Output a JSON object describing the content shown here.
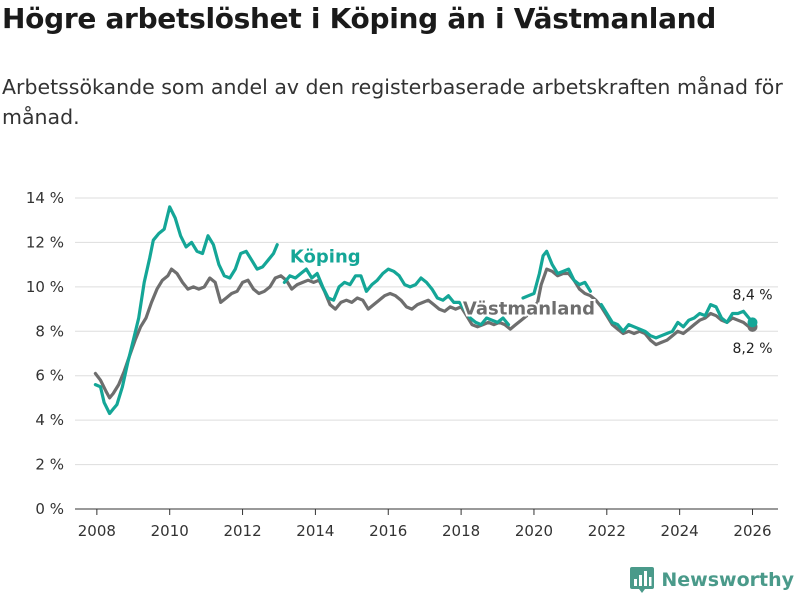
{
  "title": "Högre arbetslöshet i Köping än i Västmanland",
  "subtitle": "Arbetssökande som andel av den registerbaserade arbetskraften månad för månad.",
  "brand": {
    "name": "Newsworthy",
    "icon": "bar-chart-logo-icon"
  },
  "colors": {
    "koping": "#14a697",
    "vastmanland": "#6e6e6e",
    "grid": "#dddddd",
    "brand": "#4a9a8a"
  },
  "chart_data": {
    "type": "line",
    "title": "",
    "xlabel": "",
    "ylabel": "",
    "xlim": [
      2007.4,
      2026.7
    ],
    "ylim": [
      0,
      14
    ],
    "x_ticks": [
      2008,
      2010,
      2012,
      2014,
      2016,
      2018,
      2020,
      2022,
      2024,
      2026
    ],
    "x_tick_labels": [
      "2008",
      "2010",
      "2012",
      "2014",
      "2016",
      "2018",
      "2020",
      "2022",
      "2024",
      "2026"
    ],
    "y_ticks": [
      0,
      2,
      4,
      6,
      8,
      10,
      12,
      14
    ],
    "y_tick_labels": [
      "0 %",
      "2 %",
      "4 %",
      "6 %",
      "8 %",
      "10 %",
      "12 %",
      "14 %"
    ],
    "series": [
      {
        "name": "Köping",
        "label_text": "Köping",
        "end_label": "8,4 %",
        "color": "#14a697",
        "points": [
          [
            2007.96,
            5.6
          ],
          [
            2008.1,
            5.5
          ],
          [
            2008.2,
            4.8
          ],
          [
            2008.35,
            4.3
          ],
          [
            2008.45,
            4.5
          ],
          [
            2008.55,
            4.7
          ],
          [
            2008.7,
            5.5
          ],
          [
            2008.85,
            6.6
          ],
          [
            2009.0,
            7.6
          ],
          [
            2009.15,
            8.6
          ],
          [
            2009.3,
            10.2
          ],
          [
            2009.45,
            11.3
          ],
          [
            2009.55,
            12.1
          ],
          [
            2009.7,
            12.4
          ],
          [
            2009.85,
            12.6
          ],
          [
            2010.0,
            13.6
          ],
          [
            2010.15,
            13.1
          ],
          [
            2010.3,
            12.3
          ],
          [
            2010.45,
            11.8
          ],
          [
            2010.6,
            12.0
          ],
          [
            2010.75,
            11.6
          ],
          [
            2010.9,
            11.5
          ],
          [
            2011.05,
            12.3
          ],
          [
            2011.2,
            11.9
          ],
          [
            2011.35,
            11.0
          ],
          [
            2011.5,
            10.5
          ],
          [
            2011.65,
            10.4
          ],
          [
            2011.8,
            10.8
          ],
          [
            2011.95,
            11.5
          ],
          [
            2012.1,
            11.6
          ],
          [
            2012.25,
            11.2
          ],
          [
            2012.4,
            10.8
          ],
          [
            2012.55,
            10.9
          ],
          [
            2012.7,
            11.2
          ],
          [
            2012.85,
            11.5
          ],
          [
            2012.95,
            11.9
          ],
          [
            null,
            null
          ],
          [
            2013.15,
            10.2
          ],
          [
            2013.3,
            10.5
          ],
          [
            2013.45,
            10.4
          ],
          [
            2013.6,
            10.6
          ],
          [
            2013.75,
            10.8
          ],
          [
            2013.9,
            10.4
          ],
          [
            2014.05,
            10.6
          ],
          [
            2014.2,
            10.0
          ],
          [
            2014.35,
            9.5
          ],
          [
            2014.5,
            9.4
          ],
          [
            2014.65,
            10.0
          ],
          [
            2014.8,
            10.2
          ],
          [
            2014.95,
            10.1
          ],
          [
            2015.1,
            10.5
          ],
          [
            2015.25,
            10.5
          ],
          [
            2015.4,
            9.8
          ],
          [
            2015.55,
            10.1
          ],
          [
            2015.7,
            10.3
          ],
          [
            2015.85,
            10.6
          ],
          [
            2016.0,
            10.8
          ],
          [
            2016.15,
            10.7
          ],
          [
            2016.3,
            10.5
          ],
          [
            2016.45,
            10.1
          ],
          [
            2016.6,
            10.0
          ],
          [
            2016.75,
            10.1
          ],
          [
            2016.9,
            10.4
          ],
          [
            2017.05,
            10.2
          ],
          [
            2017.2,
            9.9
          ],
          [
            2017.35,
            9.5
          ],
          [
            2017.5,
            9.4
          ],
          [
            2017.65,
            9.6
          ],
          [
            2017.8,
            9.3
          ],
          [
            2017.95,
            9.3
          ],
          [
            2018.1,
            9.0
          ],
          [
            2018.25,
            8.6
          ],
          [
            2018.4,
            8.4
          ],
          [
            2018.55,
            8.3
          ],
          [
            2018.7,
            8.6
          ],
          [
            2018.85,
            8.5
          ],
          [
            2019.0,
            8.4
          ],
          [
            2019.15,
            8.6
          ],
          [
            2019.3,
            8.3
          ],
          [
            null,
            null
          ],
          [
            2019.7,
            9.5
          ],
          [
            2019.85,
            9.6
          ],
          [
            2020.0,
            9.7
          ],
          [
            2020.15,
            10.6
          ],
          [
            2020.25,
            11.4
          ],
          [
            2020.35,
            11.6
          ],
          [
            2020.5,
            11.0
          ],
          [
            2020.65,
            10.6
          ],
          [
            2020.8,
            10.7
          ],
          [
            2020.95,
            10.8
          ],
          [
            2021.1,
            10.3
          ],
          [
            2021.25,
            10.1
          ],
          [
            2021.4,
            10.2
          ],
          [
            2021.55,
            9.8
          ],
          [
            null,
            null
          ],
          [
            2021.85,
            9.2
          ],
          [
            2022.0,
            8.8
          ],
          [
            2022.15,
            8.4
          ],
          [
            2022.3,
            8.3
          ],
          [
            2022.45,
            8.0
          ],
          [
            2022.6,
            8.3
          ],
          [
            2022.75,
            8.2
          ],
          [
            2022.9,
            8.1
          ],
          [
            2023.05,
            8.0
          ],
          [
            2023.2,
            7.8
          ],
          [
            2023.35,
            7.7
          ],
          [
            2023.5,
            7.8
          ],
          [
            2023.65,
            7.9
          ],
          [
            2023.8,
            8.0
          ],
          [
            2023.95,
            8.4
          ],
          [
            2024.1,
            8.2
          ],
          [
            2024.25,
            8.5
          ],
          [
            2024.4,
            8.6
          ],
          [
            2024.55,
            8.8
          ],
          [
            2024.7,
            8.7
          ],
          [
            2024.85,
            9.2
          ],
          [
            2025.0,
            9.1
          ],
          [
            2025.15,
            8.6
          ],
          [
            2025.3,
            8.4
          ],
          [
            2025.45,
            8.8
          ],
          [
            2025.6,
            8.8
          ],
          [
            2025.75,
            8.9
          ],
          [
            2025.9,
            8.6
          ],
          [
            2026.0,
            8.4
          ]
        ]
      },
      {
        "name": "Västmanland",
        "label_text": "Västmanland",
        "end_label": "8,2 %",
        "color": "#6e6e6e",
        "points": [
          [
            2007.96,
            6.1
          ],
          [
            2008.1,
            5.8
          ],
          [
            2008.25,
            5.3
          ],
          [
            2008.35,
            5.0
          ],
          [
            2008.45,
            5.2
          ],
          [
            2008.6,
            5.6
          ],
          [
            2008.75,
            6.2
          ],
          [
            2008.9,
            6.9
          ],
          [
            2009.05,
            7.6
          ],
          [
            2009.2,
            8.2
          ],
          [
            2009.35,
            8.6
          ],
          [
            2009.5,
            9.3
          ],
          [
            2009.65,
            9.9
          ],
          [
            2009.8,
            10.3
          ],
          [
            2009.95,
            10.5
          ],
          [
            2010.05,
            10.8
          ],
          [
            2010.2,
            10.6
          ],
          [
            2010.35,
            10.2
          ],
          [
            2010.5,
            9.9
          ],
          [
            2010.65,
            10.0
          ],
          [
            2010.8,
            9.9
          ],
          [
            2010.95,
            10.0
          ],
          [
            2011.1,
            10.4
          ],
          [
            2011.25,
            10.2
          ],
          [
            2011.4,
            9.3
          ],
          [
            2011.55,
            9.5
          ],
          [
            2011.7,
            9.7
          ],
          [
            2011.85,
            9.8
          ],
          [
            2012.0,
            10.2
          ],
          [
            2012.15,
            10.3
          ],
          [
            2012.3,
            9.9
          ],
          [
            2012.45,
            9.7
          ],
          [
            2012.6,
            9.8
          ],
          [
            2012.75,
            10.0
          ],
          [
            2012.9,
            10.4
          ],
          [
            2013.05,
            10.5
          ],
          [
            2013.2,
            10.3
          ],
          [
            2013.35,
            9.9
          ],
          [
            2013.5,
            10.1
          ],
          [
            2013.65,
            10.2
          ],
          [
            2013.8,
            10.3
          ],
          [
            2013.95,
            10.2
          ],
          [
            2014.1,
            10.3
          ],
          [
            2014.25,
            9.8
          ],
          [
            2014.4,
            9.2
          ],
          [
            2014.55,
            9.0
          ],
          [
            2014.7,
            9.3
          ],
          [
            2014.85,
            9.4
          ],
          [
            2015.0,
            9.3
          ],
          [
            2015.15,
            9.5
          ],
          [
            2015.3,
            9.4
          ],
          [
            2015.45,
            9.0
          ],
          [
            2015.6,
            9.2
          ],
          [
            2015.75,
            9.4
          ],
          [
            2015.9,
            9.6
          ],
          [
            2016.05,
            9.7
          ],
          [
            2016.2,
            9.6
          ],
          [
            2016.35,
            9.4
          ],
          [
            2016.5,
            9.1
          ],
          [
            2016.65,
            9.0
          ],
          [
            2016.8,
            9.2
          ],
          [
            2016.95,
            9.3
          ],
          [
            2017.1,
            9.4
          ],
          [
            2017.25,
            9.2
          ],
          [
            2017.4,
            9.0
          ],
          [
            2017.55,
            8.9
          ],
          [
            2017.7,
            9.1
          ],
          [
            2017.85,
            9.0
          ],
          [
            2018.0,
            9.1
          ],
          [
            2018.15,
            8.7
          ],
          [
            2018.3,
            8.3
          ],
          [
            2018.45,
            8.2
          ],
          [
            2018.6,
            8.3
          ],
          [
            2018.75,
            8.4
          ],
          [
            2018.9,
            8.3
          ],
          [
            2019.05,
            8.4
          ],
          [
            2019.2,
            8.3
          ],
          [
            2019.35,
            8.1
          ],
          [
            2019.5,
            8.3
          ],
          [
            2019.65,
            8.5
          ],
          [
            2019.8,
            8.7
          ],
          [
            2019.95,
            9.0
          ],
          [
            2020.1,
            9.3
          ],
          [
            2020.2,
            10.1
          ],
          [
            2020.35,
            10.8
          ],
          [
            2020.5,
            10.7
          ],
          [
            2020.65,
            10.5
          ],
          [
            2020.8,
            10.6
          ],
          [
            2020.95,
            10.6
          ],
          [
            2021.1,
            10.3
          ],
          [
            2021.25,
            9.9
          ],
          [
            2021.4,
            9.7
          ],
          [
            2021.55,
            9.6
          ],
          [
            2021.7,
            9.4
          ],
          [
            2021.85,
            9.1
          ],
          [
            2022.0,
            8.7
          ],
          [
            2022.15,
            8.3
          ],
          [
            2022.3,
            8.1
          ],
          [
            2022.45,
            7.9
          ],
          [
            2022.6,
            8.0
          ],
          [
            2022.75,
            7.9
          ],
          [
            2022.9,
            8.0
          ],
          [
            2023.05,
            7.9
          ],
          [
            2023.2,
            7.6
          ],
          [
            2023.35,
            7.4
          ],
          [
            2023.5,
            7.5
          ],
          [
            2023.65,
            7.6
          ],
          [
            2023.8,
            7.8
          ],
          [
            2023.95,
            8.0
          ],
          [
            2024.1,
            7.9
          ],
          [
            2024.25,
            8.1
          ],
          [
            2024.4,
            8.3
          ],
          [
            2024.55,
            8.5
          ],
          [
            2024.7,
            8.6
          ],
          [
            2024.85,
            8.8
          ],
          [
            2025.0,
            8.7
          ],
          [
            2025.15,
            8.5
          ],
          [
            2025.3,
            8.4
          ],
          [
            2025.45,
            8.6
          ],
          [
            2025.6,
            8.5
          ],
          [
            2025.75,
            8.4
          ],
          [
            2025.9,
            8.2
          ],
          [
            2026.0,
            8.2
          ]
        ]
      }
    ],
    "legend": "inline labels on lines"
  }
}
